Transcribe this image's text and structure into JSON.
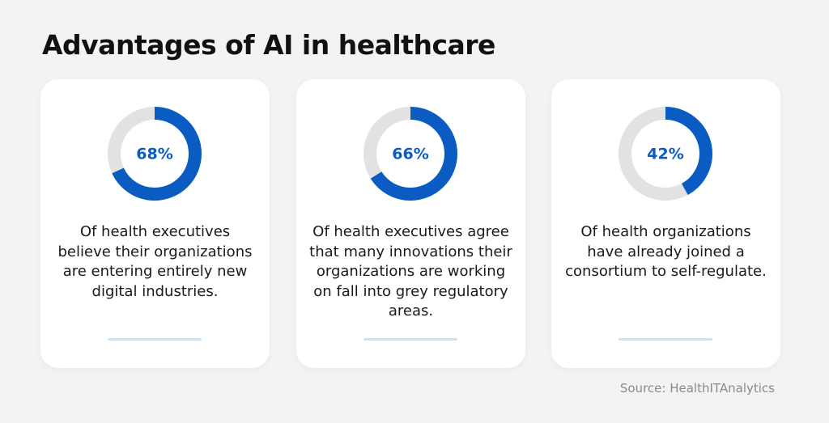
{
  "title": "Advantages of AI in healthcare",
  "source": "Source: HealthITAnalytics",
  "chart_data": [
    {
      "type": "donut",
      "values": [
        68
      ],
      "value_labels": [
        "68%"
      ],
      "color": "#0a5cc2",
      "description": "Of health executives believe their organizations are entering entirely new digital industries."
    },
    {
      "type": "donut",
      "values": [
        66
      ],
      "value_labels": [
        "66%"
      ],
      "color": "#0a5cc2",
      "description": "Of health executives agree that many innovations their organizations are working on fall into grey regulatory areas."
    },
    {
      "type": "donut",
      "values": [
        42
      ],
      "value_labels": [
        "42%"
      ],
      "color": "#0a5cc2",
      "description": "Of health organizations have already joined a consortium to self-regulate."
    }
  ]
}
